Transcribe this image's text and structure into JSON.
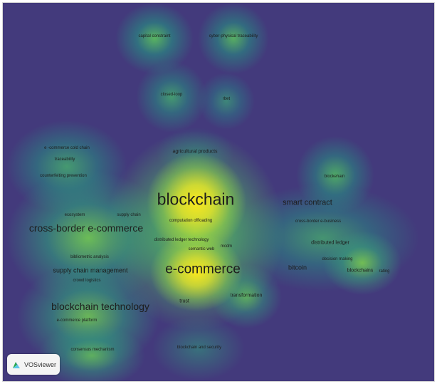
{
  "app": {
    "logo_text": "VOSviewer"
  },
  "colors": {
    "background": "#433a7c",
    "high_density": "#f6e61e",
    "medium_density": "#6fc05e",
    "low_density": "#2a8a8a"
  },
  "terms": {
    "capital_constraint": "capital constraint",
    "cyber_physical_traceability": "cyber-physical traceability",
    "closed_loop": "closed-loop",
    "rbet": "rbet",
    "e_commerce_cold_chain": "e -commerce cold chain",
    "traceability": "traceability",
    "counterfeiting_prevention": "counterfeiting prevention",
    "agricultural_products": "agricultural products",
    "blockehain": "blockehain",
    "blockchain": "blockchain",
    "smart_contract": "smart contract",
    "ecosystem": "ecosystem",
    "supply_chain": "supply chain",
    "computation_offloading": "computation offloading",
    "cross_border_e_business": "cross-border e-business",
    "cross_border_e_commerce": "cross-border e-commerce",
    "distributed_ledger_technology": "distributed ledger technology",
    "distributed_ledger": "distributed ledger",
    "semantic_web": "semantic web",
    "mcdm": "mcdm",
    "bibliometric_analysis": "bibliometric analysis",
    "decision_making": "decision making",
    "bitcoin": "bitcoin",
    "blockchains": "blockchains",
    "rating": "rating",
    "e_commerce": "e-commerce",
    "supply_chain_management": "supply chain management",
    "crowd_logistics": "crowd logistics",
    "transformation": "transformation",
    "trust": "trust",
    "blockchain_technology": "blockchain technology",
    "e_commerce_platform": "e-commerce platform",
    "blockchain_and_security": "blockchain and security",
    "consensus_mechanism": "consensus mechanism"
  }
}
